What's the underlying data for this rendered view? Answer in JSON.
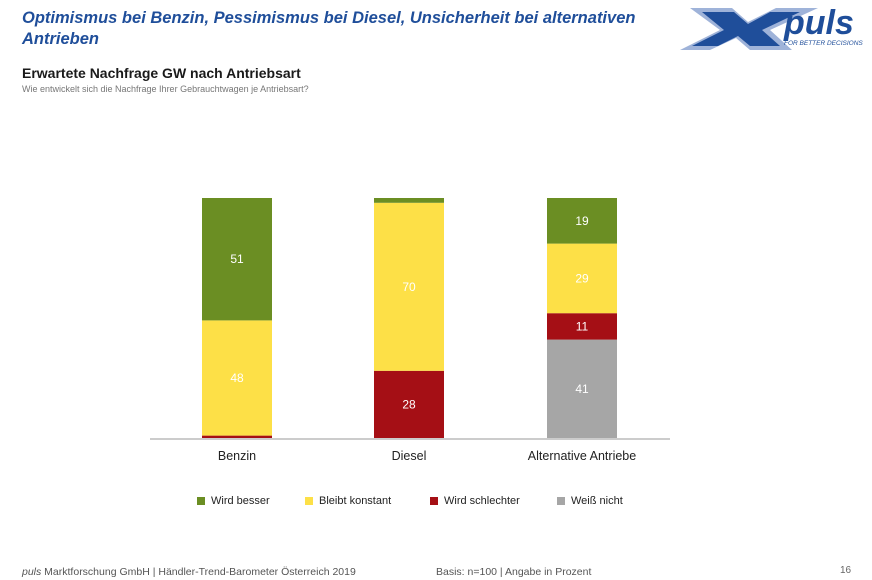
{
  "header": {
    "headline": "Optimismus bei Benzin, Pessimismus bei Diesel, Unsicherheit bei alternativen Antrieben",
    "subtitle": "Erwartete Nachfrage GW nach Antriebsart",
    "question": "Wie entwickelt sich die Nachfrage Ihrer Gebrauchtwagen je Antriebsart?"
  },
  "logo": {
    "brand": "puls",
    "tagline": "FOR BETTER DECISIONS",
    "colors": {
      "accent": "#1f4e9a",
      "light": "#9fb3d9"
    }
  },
  "chart_data": {
    "type": "bar",
    "stacked": true,
    "categories": [
      "Benzin",
      "Diesel",
      "Alternative Antriebe"
    ],
    "series": [
      {
        "name": "Weiß nicht",
        "color": "#a6a6a6",
        "values": [
          0,
          0,
          41
        ]
      },
      {
        "name": "Wird schlechter",
        "color": "#a50f15",
        "values": [
          1,
          28,
          11
        ]
      },
      {
        "name": "Bleibt konstant",
        "color": "#fde047",
        "values": [
          48,
          70,
          29
        ]
      },
      {
        "name": "Wird besser",
        "color": "#6b8e23",
        "values": [
          51,
          2,
          19
        ]
      }
    ],
    "data_labels_min": 5,
    "ylim": [
      0,
      100
    ],
    "legend_order": [
      "Wird besser",
      "Bleibt konstant",
      "Wird schlechter",
      "Weiß nicht"
    ],
    "legend_position": "bottom"
  },
  "footer": {
    "brand": "puls",
    "source": " Marktforschung GmbH | Händler-Trend-Barometer Österreich 2019",
    "basis": "Basis: n=100 | Angabe in Prozent",
    "page": "16"
  }
}
